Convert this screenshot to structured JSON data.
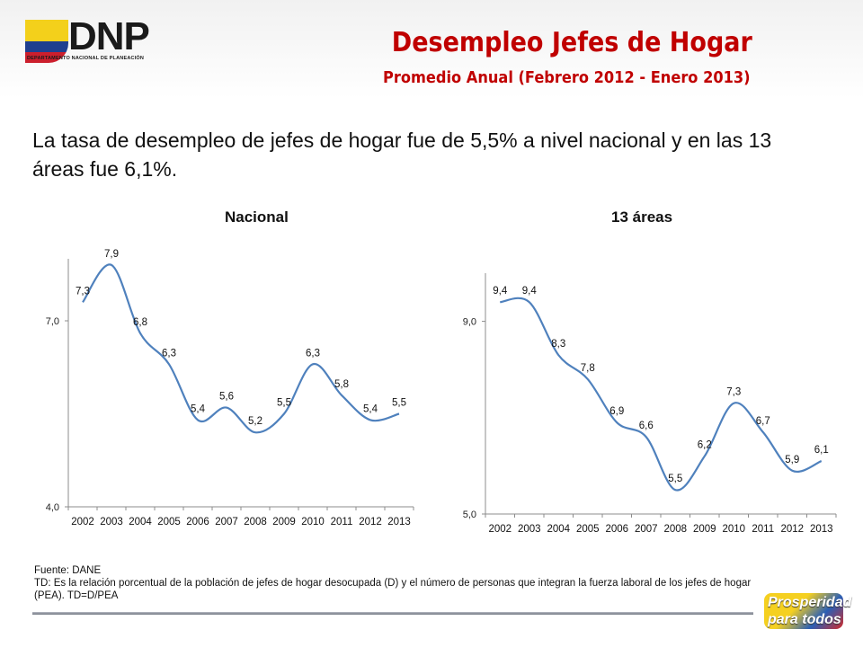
{
  "header": {
    "logo_text": "DNP",
    "logo_subtitle": "DEPARTAMENTO NACIONAL DE PLANEACIÓN",
    "title": "Desempleo Jefes de Hogar",
    "subtitle": "Promedio Anual (Febrero 2012 -  Enero 2013)"
  },
  "intro": "La tasa de desempleo de jefes de hogar fue de 5,5% a nivel nacional y en las 13 áreas fue 6,1%.",
  "chart_data": [
    {
      "type": "line",
      "title": "Nacional",
      "categories": [
        "2002",
        "2003",
        "2004",
        "2005",
        "2006",
        "2007",
        "2008",
        "2009",
        "2010",
        "2011",
        "2012",
        "2013"
      ],
      "values": [
        7.3,
        7.9,
        6.8,
        6.3,
        5.4,
        5.6,
        5.2,
        5.5,
        6.3,
        5.8,
        5.4,
        5.5
      ],
      "data_labels": [
        "7,3",
        "7,9",
        "6,8",
        "6,3",
        "5,4",
        "5,6",
        "5,2",
        "5,5",
        "6,3",
        "5,8",
        "5,4",
        "5,5"
      ],
      "ylim": [
        4.0,
        8.0
      ],
      "yticks": [
        4.0,
        7.0
      ],
      "ytick_labels": [
        "4,0",
        "7,0"
      ],
      "grid": false,
      "line_color": "#4f81bd"
    },
    {
      "type": "line",
      "title": "13 áreas",
      "categories": [
        "2002",
        "2003",
        "2004",
        "2005",
        "2006",
        "2007",
        "2008",
        "2009",
        "2010",
        "2011",
        "2012",
        "2013"
      ],
      "values": [
        9.4,
        9.4,
        8.3,
        7.8,
        6.9,
        6.6,
        5.5,
        6.2,
        7.3,
        6.7,
        5.9,
        6.1
      ],
      "data_labels": [
        "9,4",
        "9,4",
        "8,3",
        "7,8",
        "6,9",
        "6,6",
        "5,5",
        "6,2",
        "7,3",
        "6,7",
        "5,9",
        "6,1"
      ],
      "ylim": [
        5.0,
        10.0
      ],
      "yticks": [
        5.0,
        9.0
      ],
      "ytick_labels": [
        "5,0",
        "9,0"
      ],
      "grid": false,
      "line_color": "#4f81bd"
    }
  ],
  "footer": {
    "source": "Fuente: DANE",
    "note": "TD:  Es la relación porcentual de la población de jefes de hogar desocupada (D) y el número de personas que integran la fuerza laboral de los jefes de hogar (PEA). TD=D/PEA"
  },
  "badge": {
    "line1": "Prosperidad",
    "line2": "para todos"
  }
}
